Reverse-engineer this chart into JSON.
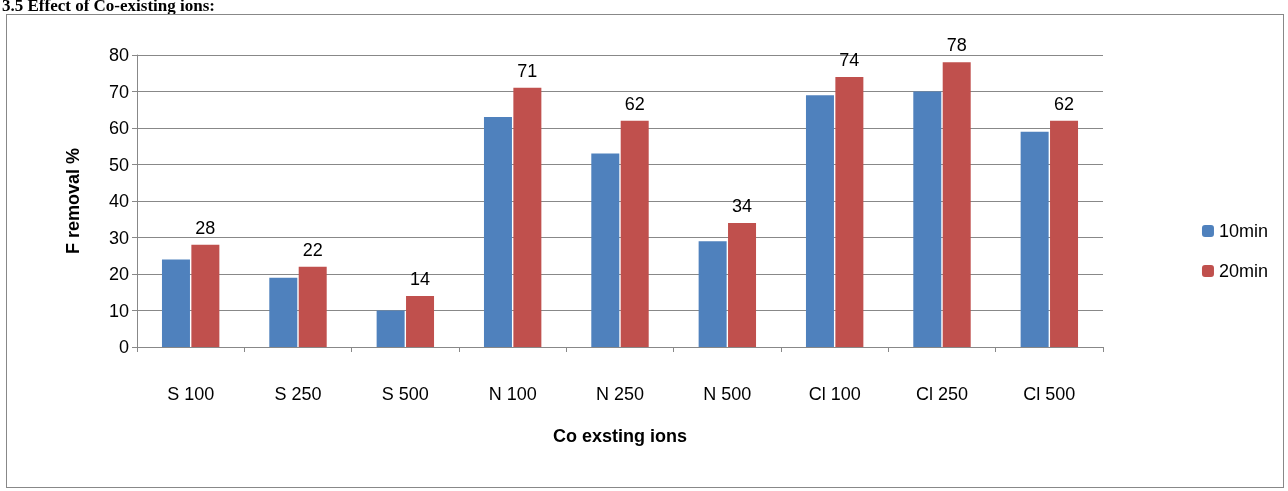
{
  "chart_data": {
    "type": "bar",
    "title": "3.5 Effect of Co-existing ions:",
    "xlabel": "Co exsting ions",
    "ylabel": "F removal %",
    "categories": [
      "S 100",
      "S 250",
      "S 500",
      "N 100",
      "N 250",
      "N 500",
      "Cl 100",
      "Cl 250",
      "Cl 500"
    ],
    "series": [
      {
        "name": "10min",
        "color": "#4f81bd",
        "values": [
          24,
          19,
          10,
          63,
          53,
          29,
          69,
          70,
          59
        ]
      },
      {
        "name": "20min",
        "color": "#c0504d",
        "values": [
          28,
          22,
          14,
          71,
          62,
          34,
          74,
          78,
          62
        ],
        "value_labels": [
          "28",
          "22",
          "14",
          "71",
          "62",
          "34",
          "74",
          "78",
          "62"
        ]
      }
    ],
    "ylim": [
      0,
      80
    ],
    "yticks": [
      0,
      10,
      20,
      30,
      40,
      50,
      60,
      70,
      80
    ],
    "grid": "y",
    "legend": "right"
  }
}
